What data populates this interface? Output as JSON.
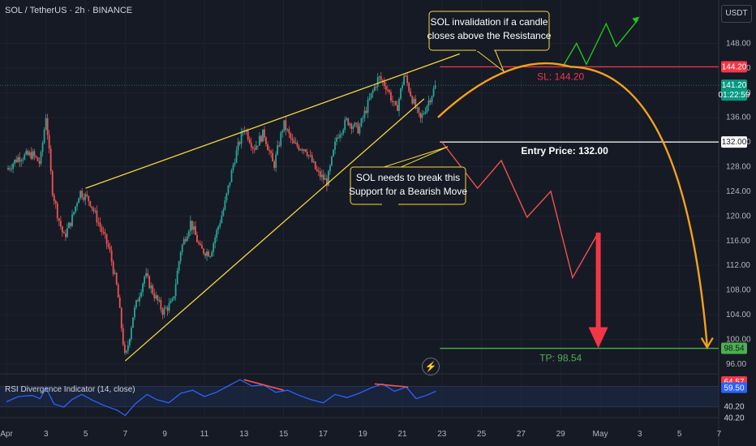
{
  "header": {
    "symbol_title": "SOL / TetherUS · 2h · BINANCE",
    "currency_label": "USDT"
  },
  "rsi_panel": {
    "title": "RSI Divergence Indicator (14, close)"
  },
  "annotations": {
    "resistance_note": [
      "SOL invalidation if a candle",
      "closes above the Resistance"
    ],
    "support_note": [
      "SOL needs to break this",
      "Support for a Bearish Move"
    ],
    "entry_label": "Entry Price: 132.00",
    "sl_label": "SL: 144.20",
    "tp_label": "TP: 98.54"
  },
  "price_badges": {
    "sl": "144.20",
    "current": "141.20",
    "countdown": "01:22:59",
    "entry": "132.00",
    "tp": "98.54"
  },
  "rsi_badges": [
    "64.57",
    "59.50",
    "40.20",
    "40.20"
  ],
  "colors": {
    "background": "#161a25",
    "wedge": "#f5d63d",
    "projection": "#f7a21b",
    "bull": "#26a69a",
    "bear": "#ef5350",
    "sl_line": "#f23645",
    "tp_line": "#4caf50",
    "rsi_line": "#2962ff",
    "up_path": "#22c51e"
  },
  "chart_data": {
    "type": "candlestick",
    "title": "SOL / TetherUS · 2h · BINANCE",
    "y_ticks": [
      148.0,
      144.0,
      140.0,
      136.0,
      132.0,
      128.0,
      124.0,
      120.0,
      116.0,
      112.0,
      108.0,
      104.0,
      100.0,
      96.0
    ],
    "ylim": [
      94.8,
      152.4
    ],
    "x_ticks": [
      "Apr",
      "3",
      "5",
      "7",
      "9",
      "11",
      "13",
      "15",
      "17",
      "19",
      "21",
      "23",
      "25",
      "27",
      "29",
      "May",
      "3",
      "5",
      "7"
    ],
    "x_tick_days": [
      1,
      3,
      5,
      7,
      9,
      11,
      13,
      15,
      17,
      19,
      21,
      23,
      25,
      27,
      29,
      31,
      33,
      35,
      37
    ],
    "price_path": [
      [
        1.0,
        127.5
      ],
      [
        1.6,
        129.5
      ],
      [
        2.3,
        130.0
      ],
      [
        2.7,
        128.5
      ],
      [
        3.0,
        136.5
      ],
      [
        3.3,
        124.5
      ],
      [
        3.6,
        120.0
      ],
      [
        3.9,
        116.5
      ],
      [
        4.3,
        119.5
      ],
      [
        4.7,
        124.0
      ],
      [
        5.2,
        122.5
      ],
      [
        5.7,
        118.5
      ],
      [
        6.2,
        114.5
      ],
      [
        6.6,
        108.0
      ],
      [
        7.0,
        96.5
      ],
      [
        7.4,
        104.0
      ],
      [
        8.0,
        110.5
      ],
      [
        8.5,
        107.0
      ],
      [
        8.9,
        104.5
      ],
      [
        9.4,
        106.0
      ],
      [
        9.8,
        114.5
      ],
      [
        10.3,
        119.0
      ],
      [
        10.8,
        114.5
      ],
      [
        11.3,
        114.0
      ],
      [
        12.0,
        121.5
      ],
      [
        12.5,
        129.0
      ],
      [
        13.0,
        134.5
      ],
      [
        13.5,
        131.0
      ],
      [
        14.0,
        133.5
      ],
      [
        14.5,
        128.0
      ],
      [
        15.0,
        135.0
      ],
      [
        15.5,
        131.5
      ],
      [
        16.1,
        131.0
      ],
      [
        16.7,
        127.0
      ],
      [
        17.2,
        125.5
      ],
      [
        17.7,
        133.0
      ],
      [
        18.2,
        135.5
      ],
      [
        18.8,
        134.0
      ],
      [
        19.3,
        138.5
      ],
      [
        19.8,
        142.5
      ],
      [
        20.2,
        141.0
      ],
      [
        20.7,
        137.0
      ],
      [
        21.1,
        143.0
      ],
      [
        21.5,
        139.0
      ],
      [
        21.9,
        135.5
      ],
      [
        22.3,
        138.5
      ],
      [
        22.7,
        141.2
      ]
    ],
    "resistance_line": [
      [
        5.0,
        124.5
      ],
      [
        23.9,
        146.3
      ]
    ],
    "support_line": [
      [
        7.0,
        96.5
      ],
      [
        22.1,
        139.0
      ]
    ],
    "levels": {
      "stop_loss": 144.2,
      "entry": 132.0,
      "take_profit": 98.54,
      "current": 141.2
    },
    "bull_case_path": [
      [
        29.1,
        144.2
      ],
      [
        29.8,
        148.0
      ],
      [
        30.3,
        144.6
      ],
      [
        31.3,
        151.2
      ],
      [
        31.8,
        147.5
      ],
      [
        32.9,
        151.8
      ]
    ],
    "bear_case_path": [
      [
        23.0,
        132.0
      ],
      [
        24.8,
        124.5
      ],
      [
        26.0,
        129.0
      ],
      [
        27.3,
        119.8
      ],
      [
        28.5,
        124.0
      ],
      [
        29.6,
        110.0
      ],
      [
        30.9,
        117.3
      ]
    ],
    "bear_arrow": {
      "from": [
        30.9,
        117.3
      ],
      "to": [
        30.9,
        98.54
      ]
    },
    "curved_projection": [
      [
        22.8,
        136.0
      ],
      [
        29.5,
        144.2
      ],
      [
        36.4,
        98.54
      ]
    ],
    "rsi": {
      "ylim": [
        30,
        70
      ],
      "levels": [
        64.57,
        59.5,
        40.2,
        40.2
      ],
      "values": [
        [
          1.0,
          45
        ],
        [
          1.6,
          50
        ],
        [
          2.3,
          51
        ],
        [
          2.7,
          48
        ],
        [
          3.0,
          58
        ],
        [
          3.4,
          43
        ],
        [
          3.9,
          40
        ],
        [
          4.3,
          47
        ],
        [
          4.8,
          52
        ],
        [
          5.4,
          46
        ],
        [
          6.0,
          41
        ],
        [
          6.6,
          37
        ],
        [
          7.0,
          32
        ],
        [
          7.5,
          43
        ],
        [
          8.1,
          52
        ],
        [
          8.6,
          47
        ],
        [
          9.2,
          44
        ],
        [
          9.8,
          53
        ],
        [
          10.4,
          56
        ],
        [
          11.0,
          50
        ],
        [
          11.6,
          54
        ],
        [
          12.2,
          60
        ],
        [
          12.8,
          66
        ],
        [
          13.4,
          60
        ],
        [
          14.0,
          61
        ],
        [
          14.6,
          54
        ],
        [
          15.2,
          56
        ],
        [
          15.8,
          51
        ],
        [
          16.4,
          47
        ],
        [
          17.0,
          44
        ],
        [
          17.6,
          52
        ],
        [
          18.2,
          49
        ],
        [
          18.8,
          53
        ],
        [
          19.4,
          58
        ],
        [
          20.0,
          62
        ],
        [
          20.6,
          55
        ],
        [
          21.2,
          59
        ],
        [
          21.7,
          48
        ],
        [
          22.2,
          51
        ],
        [
          22.7,
          55
        ]
      ],
      "divergence_1": [
        [
          13.0,
          66
        ],
        [
          15.0,
          56
        ]
      ],
      "divergence_2": [
        [
          19.6,
          62
        ],
        [
          21.3,
          59
        ]
      ]
    }
  }
}
